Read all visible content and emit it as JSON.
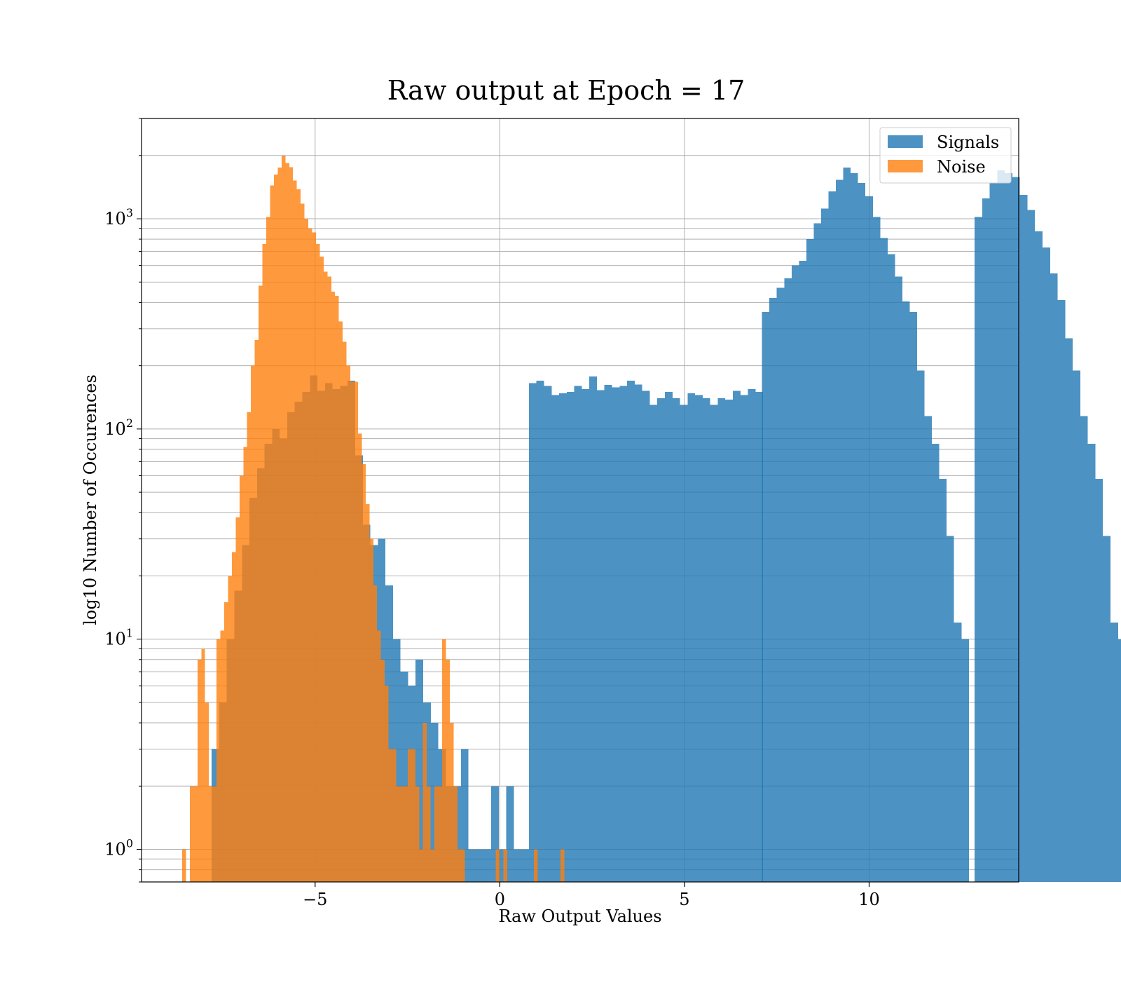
{
  "chart_data": {
    "type": "bar",
    "title": "Raw output at Epoch = 17",
    "xlabel": "Raw Output Values",
    "ylabel": "log10 Number of Occurences",
    "xlim": [
      -9.7,
      14.05
    ],
    "ylim": [
      0.7,
      3000
    ],
    "yscale": "log",
    "grid": true,
    "legend_position": "top-right",
    "x_ticks": [
      {
        "value": -5,
        "label": "−5"
      },
      {
        "value": 0,
        "label": "0"
      },
      {
        "value": 5,
        "label": "5"
      },
      {
        "value": 10,
        "label": "10"
      }
    ],
    "y_ticks": [
      {
        "value": 1,
        "base": "10",
        "exp": "0"
      },
      {
        "value": 10,
        "base": "10",
        "exp": "1"
      },
      {
        "value": 100,
        "base": "10",
        "exp": "2"
      },
      {
        "value": 1000,
        "base": "10",
        "exp": "3"
      }
    ],
    "series": [
      {
        "name": "Signals",
        "color": "#1f77b4",
        "opacity": 0.8,
        "bin_start": -7.8,
        "bin_width": 0.2045,
        "values": [
          3,
          5,
          10,
          17,
          28,
          47,
          65,
          85,
          100,
          90,
          120,
          135,
          150,
          180,
          152,
          165,
          155,
          160,
          170,
          75,
          35,
          28,
          30,
          18,
          10,
          7,
          6,
          8,
          5,
          4,
          3,
          2,
          2,
          3,
          1,
          1,
          1,
          2,
          1,
          2,
          1,
          1,
          165,
          170,
          160,
          145,
          148,
          150,
          160,
          155,
          178,
          153,
          162,
          158,
          160,
          170,
          163,
          152,
          130,
          140,
          150,
          140,
          130,
          148,
          145,
          140,
          130,
          140,
          138,
          152,
          145,
          155,
          150,
          170,
          160,
          182,
          178,
          185,
          170,
          205,
          210,
          230,
          210,
          240,
          220,
          242,
          240,
          243,
          280,
          310,
          340,
          330,
          390,
          390,
          415,
          460,
          500,
          560,
          600,
          770,
          930,
          1020,
          1250,
          1480,
          1700,
          1650,
          1580,
          1300,
          1100,
          870,
          730,
          550,
          410,
          270,
          190,
          115,
          85,
          58,
          31,
          12,
          10
        ],
        "overrides": [
          {
            "x0": 7.1,
            "x1": 11.3,
            "values": [
              360,
              420,
              470,
              520,
              600,
              630,
              800,
              950,
              1120,
              1350,
              1530,
              1750,
              1650,
              1480,
              1280,
              1020,
              810,
              680,
              530,
              405,
              360
            ]
          },
          {
            "x0": 11.3,
            "x1": 12.7,
            "values": [
              190,
              115,
              85,
              58,
              31,
              12,
              10
            ]
          }
        ]
      },
      {
        "name": "Noise",
        "color": "#ff7f0e",
        "opacity": 0.8,
        "bin_start": -8.6,
        "bin_width": 0.1035,
        "values": [
          1,
          0,
          2,
          2,
          8,
          9,
          5,
          2,
          2,
          10,
          11,
          15,
          20,
          26,
          38,
          60,
          82,
          120,
          200,
          265,
          480,
          760,
          1020,
          1440,
          1620,
          1750,
          2000,
          1840,
          1760,
          1520,
          1380,
          1180,
          1000,
          900,
          860,
          760,
          660,
          560,
          530,
          450,
          430,
          325,
          260,
          200,
          168,
          168,
          95,
          68,
          44,
          30,
          18,
          11,
          8,
          6,
          3,
          3,
          2,
          2,
          2,
          3,
          3,
          2,
          1,
          4,
          2,
          1,
          2,
          2,
          10,
          8,
          4,
          2,
          1,
          1,
          0,
          0,
          0,
          0,
          0,
          0,
          0,
          0,
          1,
          0,
          1,
          0,
          0,
          0,
          0,
          0,
          0,
          0,
          1,
          0,
          0,
          0,
          0,
          0,
          0,
          1
        ]
      }
    ]
  }
}
